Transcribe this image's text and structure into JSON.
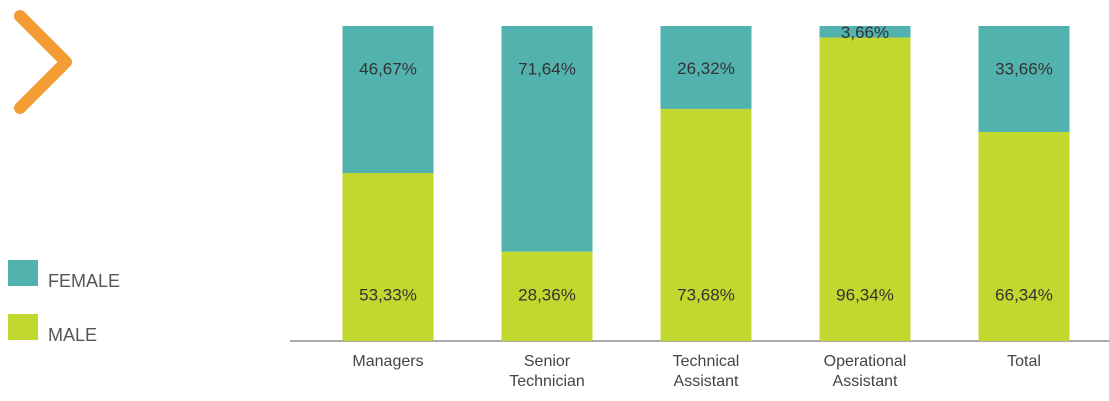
{
  "chart_data": {
    "type": "stacked-bar",
    "categories": [
      "Managers",
      "Senior Technician",
      "Technical Assistant",
      "Operational Assistant",
      "Total"
    ],
    "series": [
      {
        "name": "FEMALE",
        "color": "#52b2ad",
        "values": [
          46.67,
          71.64,
          26.32,
          3.66,
          33.66
        ],
        "value_labels": [
          "46,67%",
          "71,64%",
          "26,32%",
          "3,66%",
          "33,66%"
        ]
      },
      {
        "name": "MALE",
        "color": "#c2d82e",
        "values": [
          53.33,
          28.36,
          73.68,
          96.34,
          66.34
        ],
        "value_labels": [
          "53,33%",
          "28,36%",
          "73,68%",
          "96,34%",
          "66,34%"
        ]
      }
    ],
    "ylim": [
      0,
      100
    ]
  }
}
